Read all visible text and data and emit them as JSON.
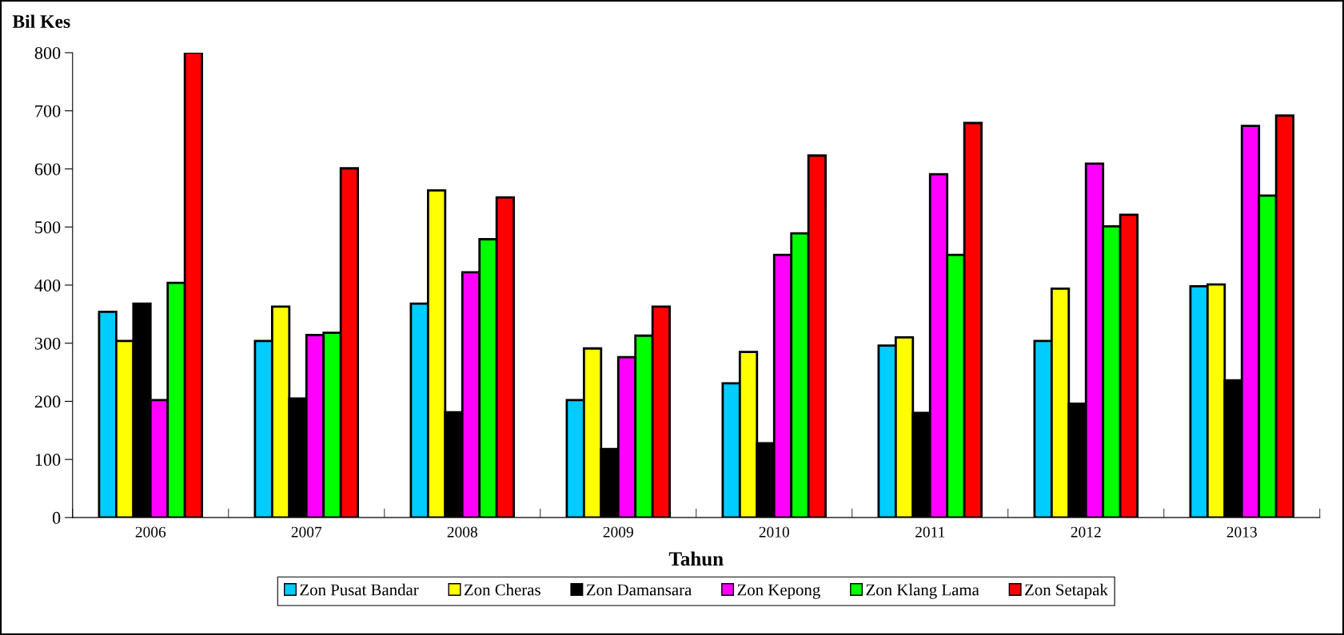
{
  "chart_data": {
    "type": "bar",
    "xlabel": "Tahun",
    "ylabel": "Bil Kes",
    "categories": [
      "2006",
      "2007",
      "2008",
      "2009",
      "2010",
      "2011",
      "2012",
      "2013"
    ],
    "series": [
      {
        "name": "Zon Pusat Bandar",
        "color": "#00ccff",
        "values": [
          354,
          304,
          368,
          202,
          231,
          296,
          304,
          398
        ]
      },
      {
        "name": "Zon Cheras",
        "color": "#ffff00",
        "values": [
          304,
          363,
          563,
          291,
          285,
          310,
          394,
          401
        ]
      },
      {
        "name": "Zon Damansara",
        "color": "#000000",
        "values": [
          368,
          205,
          181,
          118,
          128,
          180,
          196,
          236
        ]
      },
      {
        "name": "Zon Kepong",
        "color": "#ff00ff",
        "values": [
          202,
          314,
          422,
          276,
          452,
          591,
          609,
          674
        ]
      },
      {
        "name": "Zon Klang Lama",
        "color": "#00ff00",
        "values": [
          404,
          318,
          479,
          313,
          489,
          452,
          501,
          554
        ]
      },
      {
        "name": "Zon Setapak",
        "color": "#ff0000",
        "values": [
          800,
          601,
          551,
          363,
          623,
          679,
          521,
          692
        ]
      }
    ],
    "ylim": [
      0,
      800
    ],
    "yticks": [
      0,
      100,
      200,
      300,
      400,
      500,
      600,
      700,
      800
    ],
    "grid": false,
    "legend": "bottom"
  }
}
